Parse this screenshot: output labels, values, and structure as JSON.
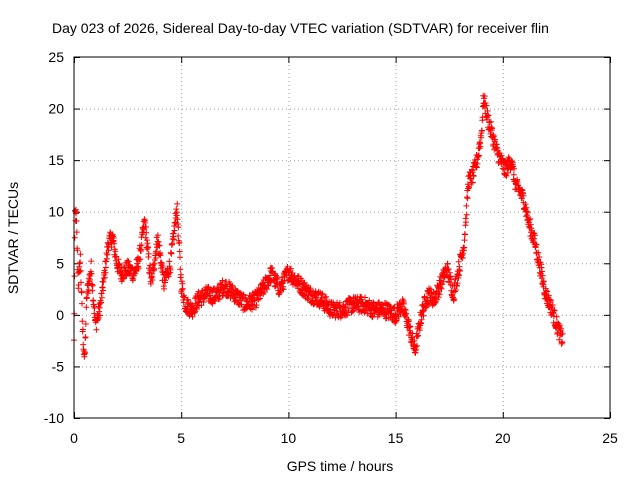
{
  "chart_data": {
    "type": "scatter",
    "title": "Day 023 of 2026, Sidereal Day-to-day VTEC variation (SDTVAR) for receiver flin",
    "xlabel": "GPS time / hours",
    "ylabel": "SDTVAR / TECUs",
    "xlim": [
      0,
      25
    ],
    "ylim": [
      -10,
      25
    ],
    "xticks": [
      0,
      5,
      10,
      15,
      20,
      25
    ],
    "xtick_labels": [
      "0",
      "5",
      "10",
      "15",
      "20",
      "25"
    ],
    "yticks": [
      -10,
      -5,
      0,
      5,
      10,
      15,
      20,
      25
    ],
    "ytick_labels": [
      "-10",
      "-5",
      "0",
      "5",
      "10",
      "15",
      "20",
      "25"
    ],
    "grid": true,
    "marker": "+",
    "series": [
      {
        "name": "SDTVAR",
        "color": "#ff0000",
        "profile": [
          [
            0.0,
            -2.7
          ],
          [
            0.05,
            9.8
          ],
          [
            0.1,
            9.5
          ],
          [
            0.2,
            3.0
          ],
          [
            0.3,
            5.5
          ],
          [
            0.4,
            -1.5
          ],
          [
            0.5,
            -4.5
          ],
          [
            0.6,
            2.0
          ],
          [
            0.8,
            4.5
          ],
          [
            1.0,
            -1.0
          ],
          [
            1.2,
            0.5
          ],
          [
            1.4,
            3.5
          ],
          [
            1.6,
            7.0
          ],
          [
            1.8,
            7.5
          ],
          [
            2.0,
            5.0
          ],
          [
            2.2,
            4.0
          ],
          [
            2.5,
            4.5
          ],
          [
            2.8,
            4.0
          ],
          [
            3.0,
            5.0
          ],
          [
            3.3,
            9.0
          ],
          [
            3.6,
            3.0
          ],
          [
            3.9,
            7.5
          ],
          [
            4.2,
            3.0
          ],
          [
            4.5,
            5.0
          ],
          [
            4.8,
            10.5
          ],
          [
            5.0,
            3.0
          ],
          [
            5.2,
            1.0
          ],
          [
            5.5,
            0.5
          ],
          [
            5.8,
            1.5
          ],
          [
            6.2,
            2.0
          ],
          [
            6.6,
            1.8
          ],
          [
            7.0,
            2.8
          ],
          [
            7.5,
            2.0
          ],
          [
            8.0,
            1.0
          ],
          [
            8.5,
            1.5
          ],
          [
            8.9,
            2.8
          ],
          [
            9.2,
            4.0
          ],
          [
            9.6,
            2.5
          ],
          [
            10.0,
            4.2
          ],
          [
            10.5,
            3.0
          ],
          [
            11.0,
            2.0
          ],
          [
            11.5,
            1.5
          ],
          [
            12.0,
            0.5
          ],
          [
            12.5,
            0.5
          ],
          [
            13.0,
            1.0
          ],
          [
            13.5,
            1.0
          ],
          [
            14.0,
            0.5
          ],
          [
            14.5,
            0.5
          ],
          [
            15.0,
            0.0
          ],
          [
            15.3,
            1.0
          ],
          [
            15.6,
            -1.0
          ],
          [
            15.9,
            -3.5
          ],
          [
            16.2,
            0.0
          ],
          [
            16.5,
            2.0
          ],
          [
            16.8,
            1.5
          ],
          [
            17.1,
            3.0
          ],
          [
            17.4,
            4.5
          ],
          [
            17.7,
            2.0
          ],
          [
            18.0,
            5.0
          ],
          [
            18.2,
            7.0
          ],
          [
            18.4,
            13.0
          ],
          [
            18.6,
            13.5
          ],
          [
            18.8,
            15.0
          ],
          [
            19.0,
            17.5
          ],
          [
            19.1,
            21.0
          ],
          [
            19.3,
            19.0
          ],
          [
            19.5,
            17.5
          ],
          [
            19.7,
            16.0
          ],
          [
            19.9,
            15.0
          ],
          [
            20.1,
            14.0
          ],
          [
            20.4,
            15.0
          ],
          [
            20.6,
            12.5
          ],
          [
            20.8,
            12.0
          ],
          [
            21.0,
            11.0
          ],
          [
            21.2,
            9.0
          ],
          [
            21.5,
            7.0
          ],
          [
            21.8,
            4.0
          ],
          [
            22.0,
            2.0
          ],
          [
            22.3,
            0.5
          ],
          [
            22.6,
            -1.5
          ],
          [
            22.8,
            -2.5
          ]
        ]
      }
    ]
  }
}
